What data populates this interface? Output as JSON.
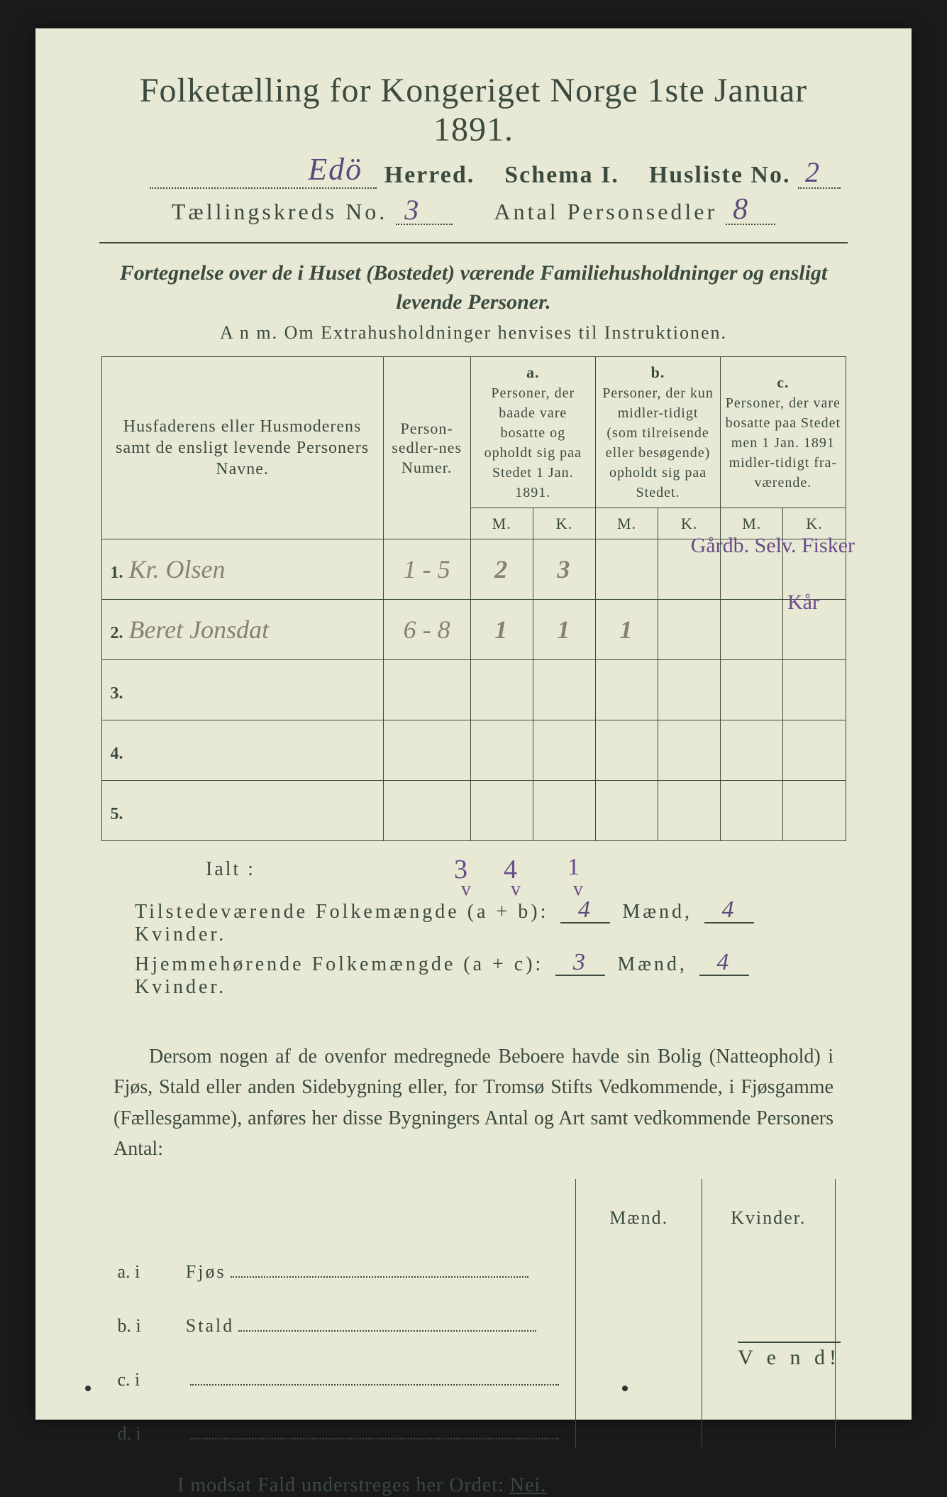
{
  "colors": {
    "paper": "#e8e9d4",
    "ink": "#3a4a3f",
    "handwriting_purple": "#6a4a8a",
    "handwriting_pencil": "#888070",
    "background": "#1a1a1a"
  },
  "title": "Folketælling for Kongeriget Norge 1ste Januar 1891.",
  "header": {
    "herred_value": "Edö",
    "herred_label": "Herred.",
    "schema_label": "Schema I.",
    "husliste_label": "Husliste No.",
    "husliste_value": "2",
    "kreds_label": "Tællingskreds No.",
    "kreds_value": "3",
    "persed_label": "Antal Personsedler",
    "persed_value": "8"
  },
  "subtitle": "Fortegnelse over de i Huset (Bostedet) værende Familiehusholdninger og ensligt levende Personer.",
  "anm": "A n m.   Om Extrahusholdninger henvises til Instruktionen.",
  "table": {
    "head_names": "Husfaderens eller Husmoderens samt de ensligt levende Personers Navne.",
    "head_numer": "Person-sedler-nes Numer.",
    "col_a_label": "a.",
    "col_a_text": "Personer, der baade vare bosatte og opholdt sig paa Stedet 1 Jan. 1891.",
    "col_b_label": "b.",
    "col_b_text": "Personer, der kun midler-tidigt (som tilreisende eller besøgende) opholdt sig paa Stedet.",
    "col_c_label": "c.",
    "col_c_text": "Personer, der vare bosatte paa Stedet men 1 Jan. 1891 midler-tidigt fra-værende.",
    "mk_m": "M.",
    "mk_k": "K.",
    "rows": [
      {
        "n": "1.",
        "name": "Kr. Olsen",
        "numer": "1 - 5",
        "a_m": "2",
        "a_k": "3",
        "b_m": "",
        "b_k": "",
        "c_m": "",
        "c_k": "",
        "margin": "Gårdb. Selv. Fisker"
      },
      {
        "n": "2.",
        "name": "Beret Jonsdat",
        "numer": "6 - 8",
        "a_m": "1",
        "a_k": "1",
        "b_m": "1",
        "b_k": "",
        "c_m": "",
        "c_k": "",
        "margin": "Kår"
      },
      {
        "n": "3.",
        "name": "",
        "numer": "",
        "a_m": "",
        "a_k": "",
        "b_m": "",
        "b_k": "",
        "c_m": "",
        "c_k": "",
        "margin": ""
      },
      {
        "n": "4.",
        "name": "",
        "numer": "",
        "a_m": "",
        "a_k": "",
        "b_m": "",
        "b_k": "",
        "c_m": "",
        "c_k": "",
        "margin": ""
      },
      {
        "n": "5.",
        "name": "",
        "numer": "",
        "a_m": "",
        "a_k": "",
        "b_m": "",
        "b_k": "",
        "c_m": "",
        "c_k": "",
        "margin": ""
      }
    ],
    "ialt_label": "Ialt :",
    "ialt": {
      "a_m": "3",
      "a_k": "4",
      "b_m": "1"
    }
  },
  "sums": {
    "line1_label": "Tilstedeværende Folkemængde (a + b):",
    "line1_m": "4",
    "line1_m_lbl": "Mænd,",
    "line1_k": "4",
    "line1_k_lbl": "Kvinder.",
    "line2_label": "Hjemmehørende Folkemængde (a + c):",
    "line2_m": "3",
    "line2_m_lbl": "Mænd,",
    "line2_k": "4",
    "line2_k_lbl": "Kvinder."
  },
  "para": "Dersom nogen af de ovenfor medregnede Beboere havde sin Bolig (Natteophold) i Fjøs, Stald eller anden Sidebygning eller, for Tromsø Stifts Vedkommende, i Fjøsgamme (Fællesgamme), anføres her disse Bygningers Antal og Art samt vedkommende Personers Antal:",
  "lower": {
    "head_m": "Mænd.",
    "head_k": "Kvinder.",
    "rows": [
      {
        "lbl": "a.  i",
        "txt": "Fjøs"
      },
      {
        "lbl": "b.  i",
        "txt": "Stald"
      },
      {
        "lbl": "c.  i",
        "txt": ""
      },
      {
        "lbl": "d.  i",
        "txt": ""
      }
    ]
  },
  "nei": "I modsat Fald understreges her Ordet:",
  "nei_word": "Nei.",
  "vend": "V e n d!"
}
